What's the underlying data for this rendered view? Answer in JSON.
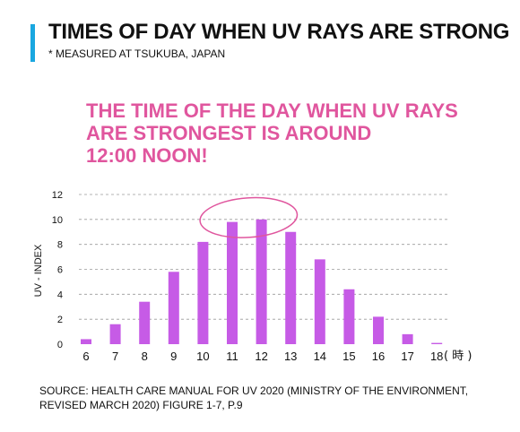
{
  "header": {
    "title": "TIMES OF DAY WHEN UV RAYS ARE STRONG",
    "subtitle": "* MEASURED AT TSUKUBA, JAPAN",
    "accent_color": "#1aa7e0"
  },
  "callout": {
    "lines": [
      "THE TIME OF THE DAY WHEN UV RAYS",
      "ARE STRONGEST IS AROUND",
      "12:00 NOON!"
    ],
    "color": "#e0569e"
  },
  "source": {
    "lines": [
      "SOURCE: HEALTH CARE MANUAL FOR UV 2020 (MINISTRY OF THE ENVIRONMENT,",
      "REVISED MARCH 2020) FIGURE 1-7, P.9"
    ]
  },
  "chart_data": {
    "type": "bar",
    "categories": [
      "6",
      "7",
      "8",
      "9",
      "10",
      "11",
      "12",
      "13",
      "14",
      "15",
      "16",
      "17",
      "18"
    ],
    "values": [
      0.4,
      1.6,
      3.4,
      5.8,
      8.2,
      9.8,
      10.0,
      9.0,
      6.8,
      4.4,
      2.2,
      0.8,
      0.1
    ],
    "ylabel": "UV - INDEX",
    "x_unit": "( 時 )",
    "ylim": [
      0,
      12
    ],
    "yticks": [
      0,
      2,
      4,
      6,
      8,
      10,
      12
    ],
    "grid": true,
    "bar_color": "#c65be6",
    "highlight_color": "#e0569e",
    "highlight_categories": [
      "11",
      "12"
    ]
  }
}
